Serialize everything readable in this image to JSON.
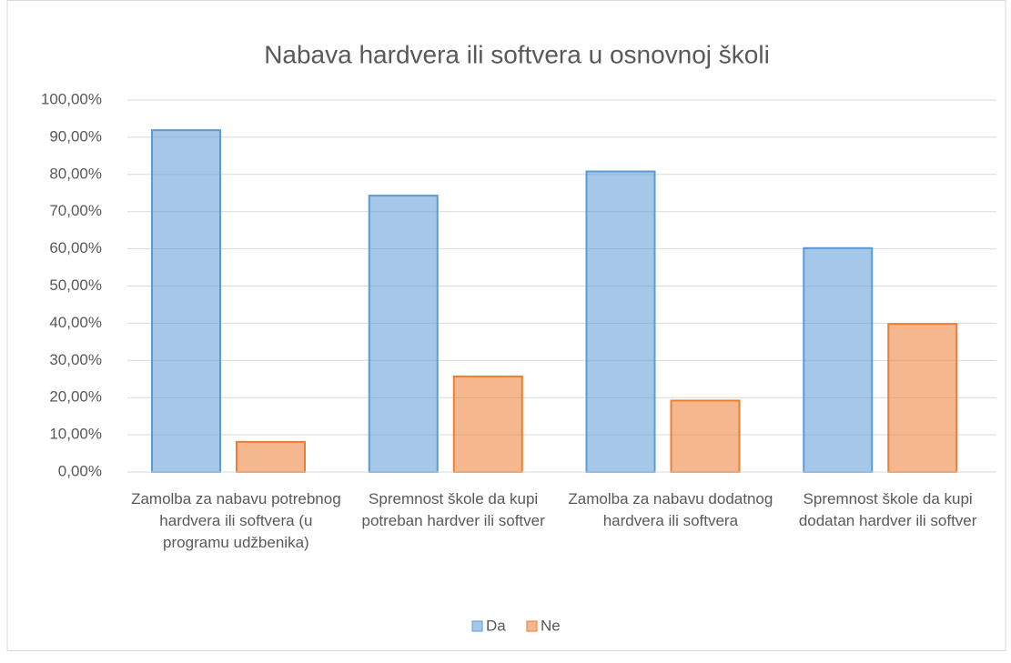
{
  "chart_data": {
    "type": "bar",
    "title": "Nabava hardvera  ili softvera  u osnovnoj  školi",
    "categories": [
      "Zamolba za nabavu potrebnog hardvera ili softvera (u programu udžbenika)",
      "Spremnost škole da kupi potreban hardver ili softver",
      "Zamolba za nabavu dodatnog hardvera ili softvera",
      "Spremnost škole da kupi dodatan hardver ili softver"
    ],
    "series": [
      {
        "name": "Da",
        "color": "#5b9bd5",
        "values": [
          91.9,
          74.3,
          80.8,
          60.2
        ]
      },
      {
        "name": "Ne",
        "color": "#ed7d31",
        "values": [
          8.1,
          25.7,
          19.2,
          39.8
        ]
      }
    ],
    "ylim": [
      0,
      100
    ],
    "yticks": [
      {
        "value": 0,
        "label": "0,00%"
      },
      {
        "value": 10,
        "label": "10,00%"
      },
      {
        "value": 20,
        "label": "20,00%"
      },
      {
        "value": 30,
        "label": "30,00%"
      },
      {
        "value": 40,
        "label": "40,00%"
      },
      {
        "value": 50,
        "label": "50,00%"
      },
      {
        "value": 60,
        "label": "60,00%"
      },
      {
        "value": 70,
        "label": "70,00%"
      },
      {
        "value": 80,
        "label": "80,00%"
      },
      {
        "value": 90,
        "label": "90,00%"
      },
      {
        "value": 100,
        "label": "100,00%"
      }
    ],
    "grid": true,
    "legend": "bottom"
  }
}
